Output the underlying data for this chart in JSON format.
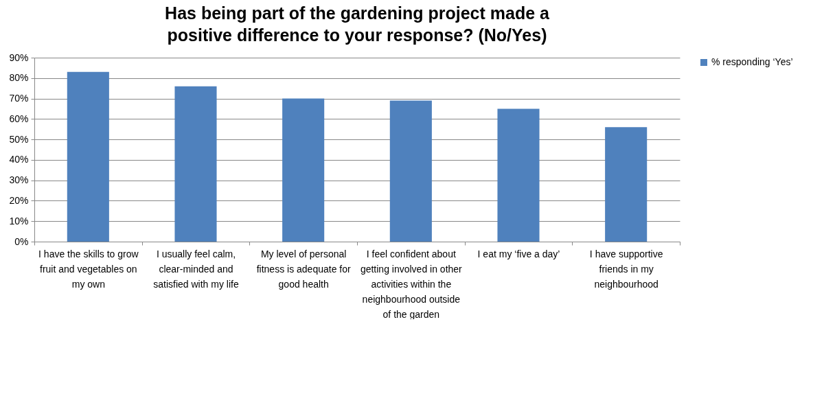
{
  "chart_data": {
    "type": "bar",
    "title": "Has being part of the gardening project made a positive difference to your response? (No/Yes)",
    "categories": [
      "I have the skills to grow fruit and vegetables on my own",
      "I usually feel calm, clear-minded and satisfied with my life",
      "My level of personal fitness is adequate for good health",
      "I feel confident about getting involved in other activities within the neighbourhood outside of the garden",
      "I eat my ‘five a day’",
      "I have supportive friends in my neighbourhood"
    ],
    "series": [
      {
        "name": "% responding ‘Yes’",
        "color": "#4f81bd",
        "values": [
          83,
          76,
          70,
          69,
          65,
          56
        ]
      }
    ],
    "ylim": [
      0,
      90
    ],
    "yticks": [
      {
        "value": 0,
        "label": "0%"
      },
      {
        "value": 10,
        "label": "10%"
      },
      {
        "value": 20,
        "label": "20%"
      },
      {
        "value": 30,
        "label": "30%"
      },
      {
        "value": 40,
        "label": "40%"
      },
      {
        "value": 50,
        "label": "50%"
      },
      {
        "value": 60,
        "label": "60%"
      },
      {
        "value": 70,
        "label": "70%"
      },
      {
        "value": 80,
        "label": "80%"
      },
      {
        "value": 90,
        "label": "90%"
      }
    ],
    "grid": "y",
    "legend": "right"
  }
}
